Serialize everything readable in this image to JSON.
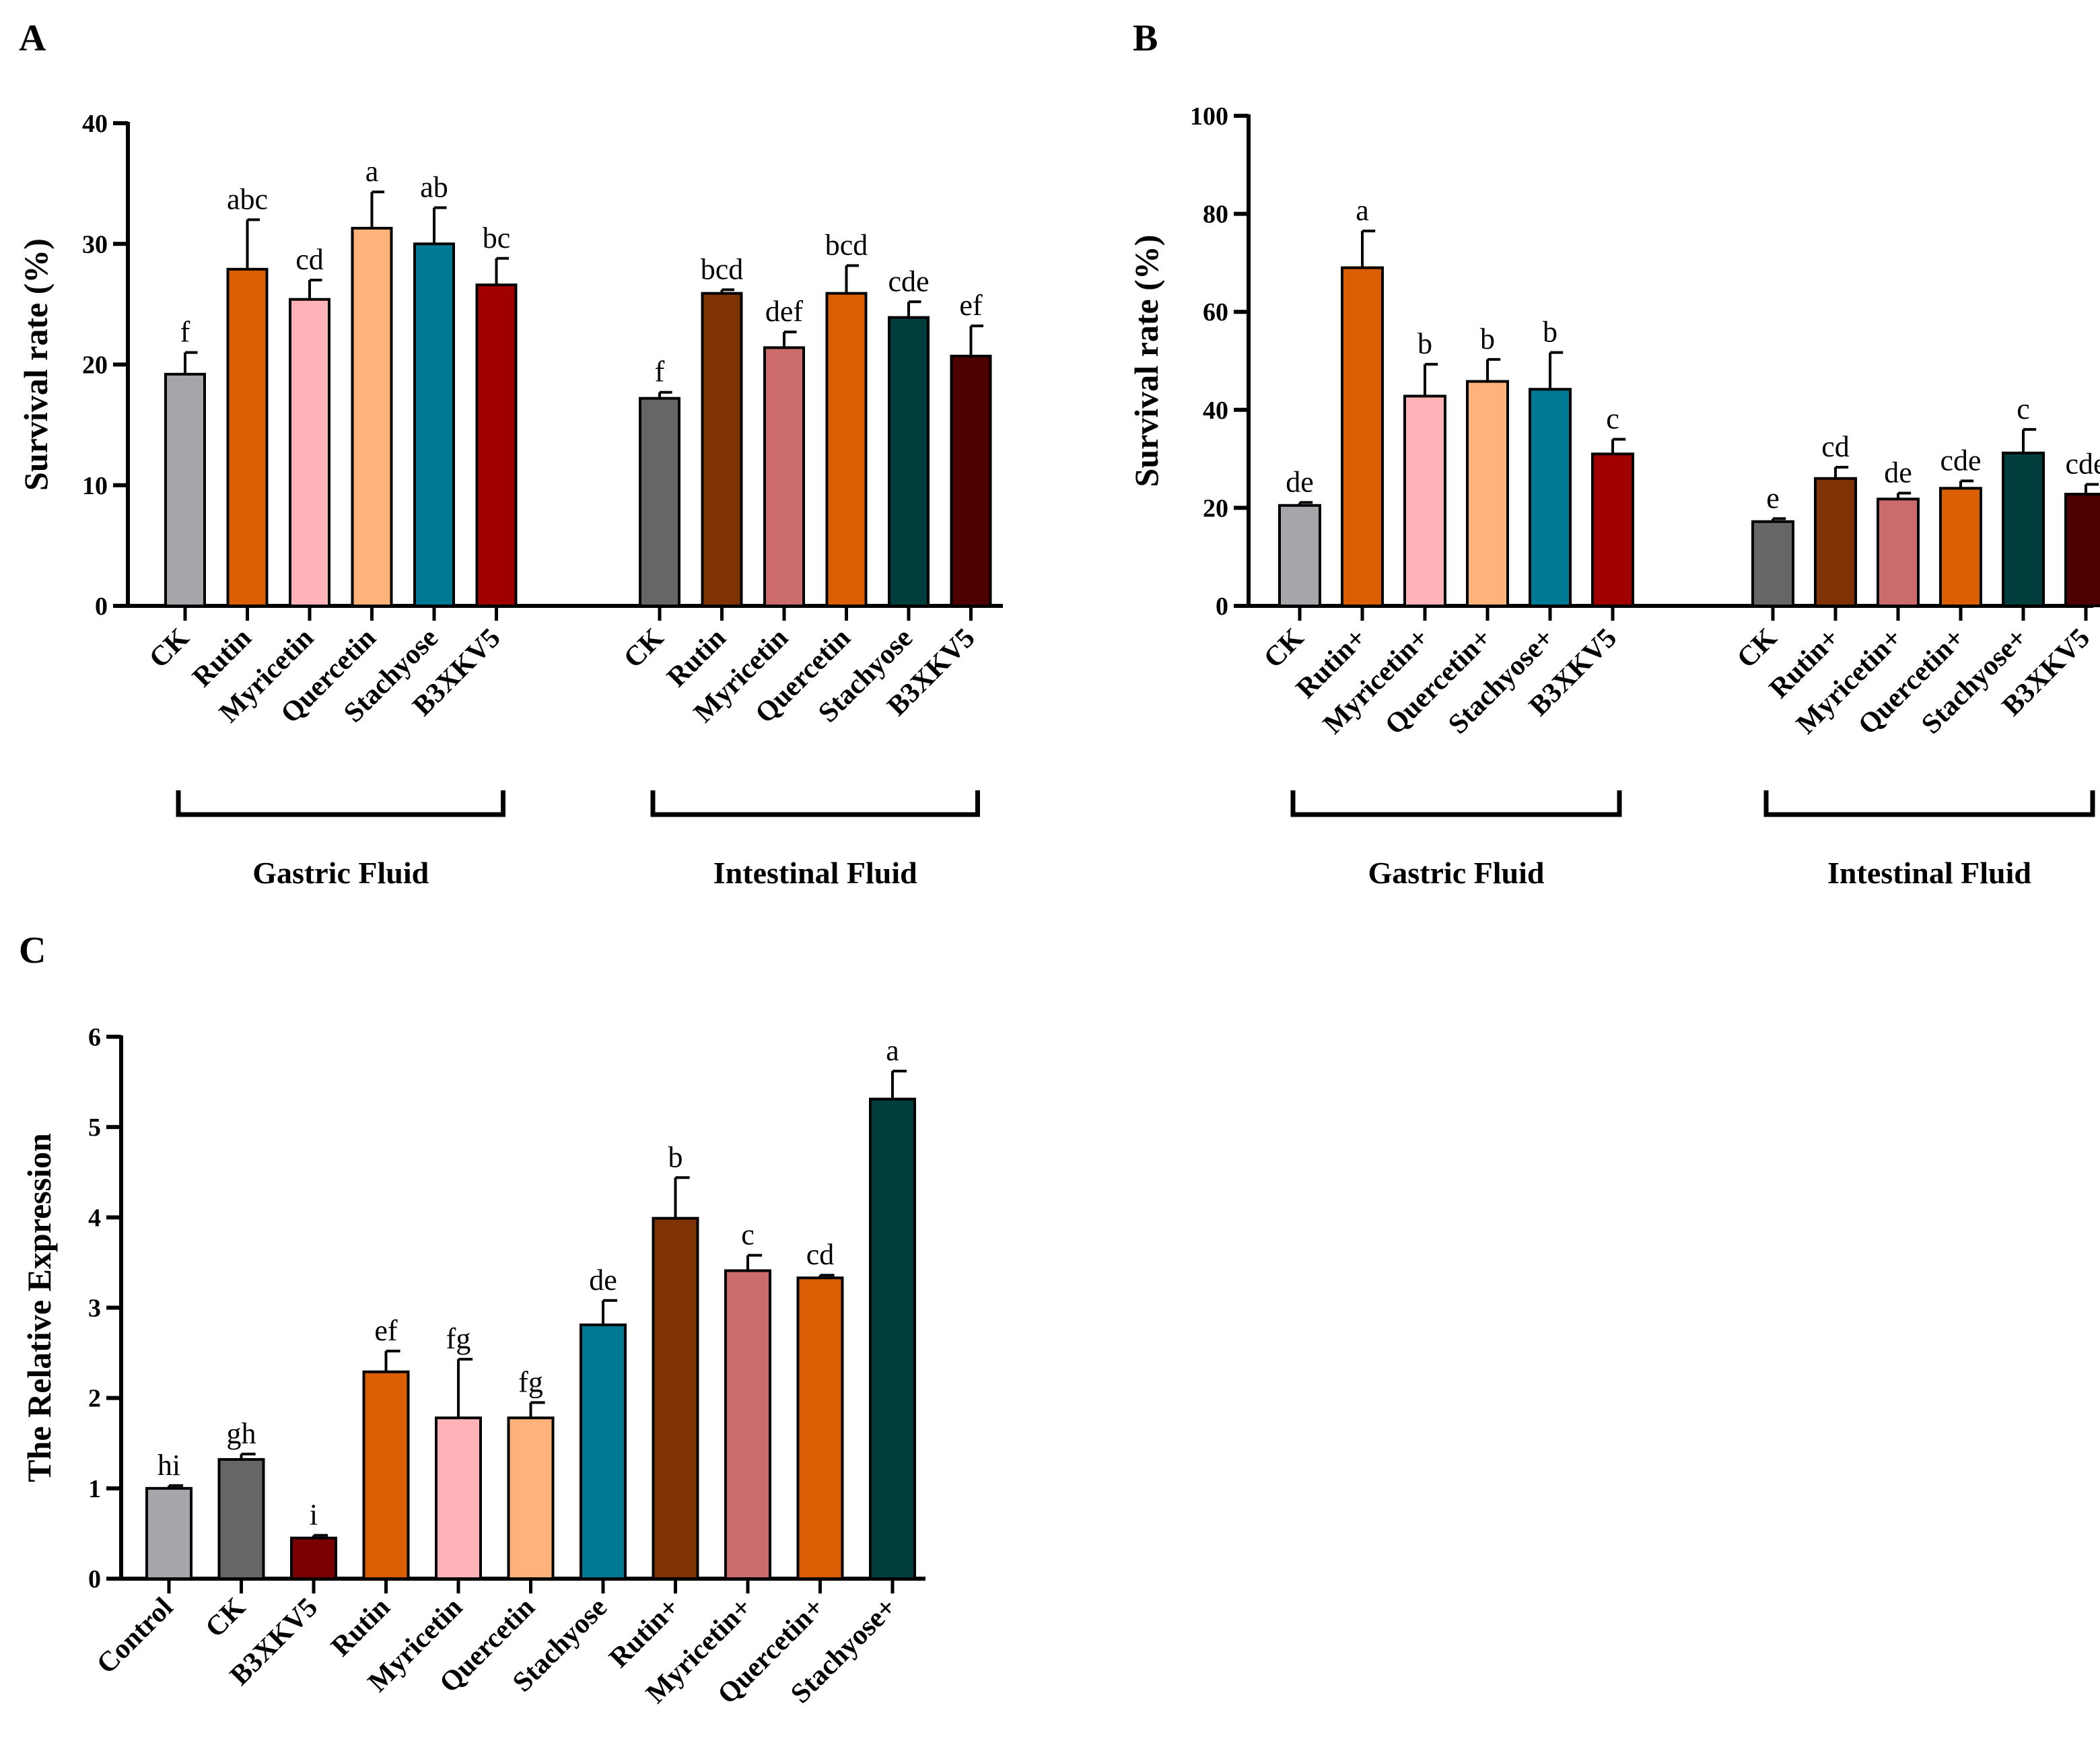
{
  "chart_data": [
    {
      "id": "A",
      "type": "bar",
      "panel_label": "A",
      "ylabel": "Survival rate (%)",
      "ylim": [
        0,
        40
      ],
      "yticks": [
        0,
        10,
        20,
        30,
        40
      ],
      "groups": [
        {
          "label": "Gastric Fluid",
          "bars": [
            {
              "category": "CK",
              "value": 19.2,
              "error": 1.8,
              "sig": "f",
              "color": "#a6a6aa"
            },
            {
              "category": "Rutin",
              "value": 27.9,
              "error": 4.1,
              "sig": "abc",
              "color": "#d95f02"
            },
            {
              "category": "Myricetin",
              "value": 25.4,
              "error": 1.6,
              "sig": "cd",
              "color": "#ffb3b8"
            },
            {
              "category": "Quercetin",
              "value": 31.3,
              "error": 3.0,
              "sig": "a",
              "color": "#ffb37a"
            },
            {
              "category": "Stachyose",
              "value": 30.0,
              "error": 3.0,
              "sig": "ab",
              "color": "#007a94"
            },
            {
              "category": "B3XKV5",
              "value": 26.6,
              "error": 2.2,
              "sig": "bc",
              "color": "#a00000"
            }
          ]
        },
        {
          "label": "Intestinal Fluid",
          "bars": [
            {
              "category": "CK",
              "value": 17.2,
              "error": 0.5,
              "sig": "f",
              "color": "#666666"
            },
            {
              "category": "Rutin",
              "value": 25.9,
              "error": 0.3,
              "sig": "bcd",
              "color": "#7f3304"
            },
            {
              "category": "Myricetin",
              "value": 21.4,
              "error": 1.3,
              "sig": "def",
              "color": "#cc6b6b"
            },
            {
              "category": "Quercetin",
              "value": 25.9,
              "error": 2.3,
              "sig": "bcd",
              "color": "#d95f02"
            },
            {
              "category": "Stachyose",
              "value": 23.9,
              "error": 1.3,
              "sig": "cde",
              "color": "#003d3d"
            },
            {
              "category": "B3XKV5",
              "value": 20.7,
              "error": 2.5,
              "sig": "ef",
              "color": "#4d0000"
            }
          ]
        }
      ]
    },
    {
      "id": "B",
      "type": "bar",
      "panel_label": "B",
      "ylabel": "Survival rate (%)",
      "ylim": [
        0,
        100
      ],
      "yticks": [
        0,
        20,
        40,
        60,
        80,
        100
      ],
      "groups": [
        {
          "label": "Gastric Fluid",
          "bars": [
            {
              "category": "CK",
              "value": 20.5,
              "error": 0.6,
              "sig": "de",
              "color": "#a6a6aa"
            },
            {
              "category": "Rutin+",
              "value": 69.0,
              "error": 7.5,
              "sig": "a",
              "color": "#d95f02"
            },
            {
              "category": "Myricetin+",
              "value": 42.8,
              "error": 6.5,
              "sig": "b",
              "color": "#ffb3b8"
            },
            {
              "category": "Quercetin+",
              "value": 45.8,
              "error": 4.5,
              "sig": "b",
              "color": "#ffb37a"
            },
            {
              "category": "Stachyose+",
              "value": 44.2,
              "error": 7.5,
              "sig": "b",
              "color": "#007a94"
            },
            {
              "category": "B3XKV5",
              "value": 31.0,
              "error": 3.0,
              "sig": "c",
              "color": "#a00000"
            }
          ]
        },
        {
          "label": "Intestinal Fluid",
          "bars": [
            {
              "category": "CK",
              "value": 17.2,
              "error": 0.6,
              "sig": "e",
              "color": "#666666"
            },
            {
              "category": "Rutin+",
              "value": 26.0,
              "error": 2.3,
              "sig": "cd",
              "color": "#7f3304"
            },
            {
              "category": "Myricetin+",
              "value": 21.8,
              "error": 1.2,
              "sig": "de",
              "color": "#cc6b6b"
            },
            {
              "category": "Quercetin+",
              "value": 24.0,
              "error": 1.5,
              "sig": "cde",
              "color": "#d95f02"
            },
            {
              "category": "Stachyose+",
              "value": 31.2,
              "error": 4.8,
              "sig": "c",
              "color": "#003d3d"
            },
            {
              "category": "B3XKV5",
              "value": 22.8,
              "error": 2.0,
              "sig": "cde",
              "color": "#4d0000"
            }
          ]
        }
      ]
    },
    {
      "id": "C",
      "type": "bar",
      "panel_label": "C",
      "ylabel": "The Relative Expression",
      "ylim": [
        0,
        6
      ],
      "yticks": [
        0,
        1,
        2,
        3,
        4,
        5,
        6
      ],
      "groups": [
        {
          "label": "",
          "bars": [
            {
              "category": "Control",
              "value": 1.0,
              "error": 0.03,
              "sig": "hi",
              "color": "#a6a6aa"
            },
            {
              "category": "CK",
              "value": 1.32,
              "error": 0.06,
              "sig": "gh",
              "color": "#666666"
            },
            {
              "category": "B3XKV5",
              "value": 0.45,
              "error": 0.03,
              "sig": "i",
              "color": "#7a0000"
            },
            {
              "category": "Rutin",
              "value": 2.29,
              "error": 0.23,
              "sig": "ef",
              "color": "#d95f02"
            },
            {
              "category": "Myricetin",
              "value": 1.78,
              "error": 0.65,
              "sig": "fg",
              "color": "#ffb3b8"
            },
            {
              "category": "Quercetin",
              "value": 1.78,
              "error": 0.17,
              "sig": "fg",
              "color": "#ffb37a"
            },
            {
              "category": "Stachyose",
              "value": 2.81,
              "error": 0.27,
              "sig": "de",
              "color": "#007a94"
            },
            {
              "category": "Rutin+",
              "value": 3.99,
              "error": 0.45,
              "sig": "b",
              "color": "#7f3304"
            },
            {
              "category": "Myricetin+",
              "value": 3.41,
              "error": 0.17,
              "sig": "c",
              "color": "#cc6b6b"
            },
            {
              "category": "Quercetin+",
              "value": 3.33,
              "error": 0.03,
              "sig": "cd",
              "color": "#d95f02"
            },
            {
              "category": "Stachyose+",
              "value": 5.31,
              "error": 0.31,
              "sig": "a",
              "color": "#003d3d"
            }
          ]
        }
      ]
    }
  ]
}
